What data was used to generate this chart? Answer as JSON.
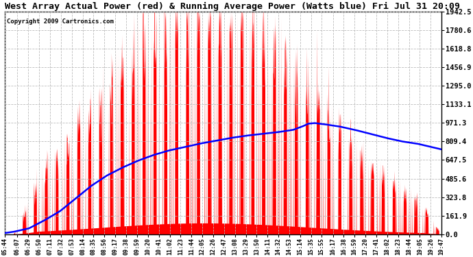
{
  "title": "West Array Actual Power (red) & Running Average Power (Watts blue) Fri Jul 31 20:09",
  "copyright": "Copyright 2009 Cartronics.com",
  "ymax": 1942.5,
  "yticks": [
    0.0,
    161.9,
    323.8,
    485.6,
    647.5,
    809.4,
    971.3,
    1133.1,
    1295.0,
    1456.9,
    1618.8,
    1780.6,
    1942.5
  ],
  "background_color": "#ffffff",
  "grid_color": "#bbbbbb",
  "bar_color": "red",
  "avg_color": "blue",
  "x_labels": [
    "05:44",
    "06:07",
    "06:29",
    "06:50",
    "07:11",
    "07:32",
    "07:53",
    "08:14",
    "08:35",
    "08:56",
    "09:17",
    "09:38",
    "09:59",
    "10:20",
    "10:41",
    "11:02",
    "11:23",
    "11:44",
    "12:05",
    "12:26",
    "12:47",
    "13:08",
    "13:29",
    "13:50",
    "14:11",
    "14:32",
    "14:53",
    "15:14",
    "15:35",
    "15:55",
    "16:17",
    "16:38",
    "16:59",
    "17:20",
    "17:41",
    "18:02",
    "18:23",
    "18:44",
    "19:05",
    "19:26",
    "19:47"
  ]
}
